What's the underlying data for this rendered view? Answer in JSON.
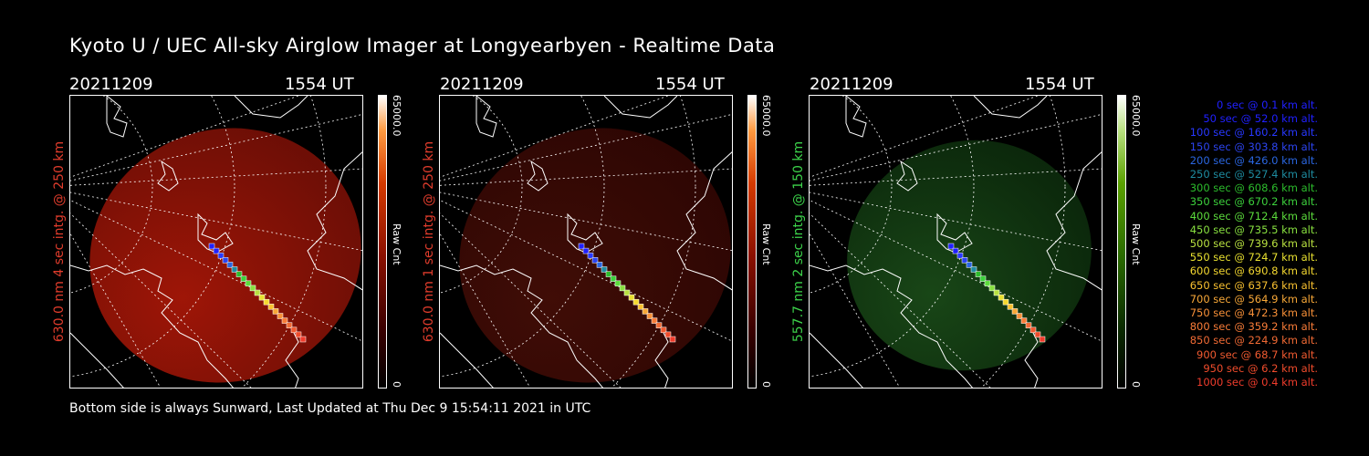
{
  "title": "Kyoto U / UEC All-sky Airglow Imager at Longyearbyen - Realtime Data",
  "panels": [
    {
      "date": "20211209",
      "ut": "1554 UT",
      "label": "630.0 nm  4 sec intg. @ 250 km",
      "label_color": "#e03c2c",
      "cbar_max": "65000.0",
      "cbar_min": "0",
      "cbar_unit": "Raw Cnt",
      "cmap": "red"
    },
    {
      "date": "20211209",
      "ut": "1554 UT",
      "label": "630.0 nm  1 sec intg. @ 250 km",
      "label_color": "#e03c2c",
      "cbar_max": "65000.0",
      "cbar_min": "0",
      "cbar_unit": "Raw Cnt",
      "cmap": "red"
    },
    {
      "date": "20211209",
      "ut": "1554 UT",
      "label": "557.7 nm  2 sec intg. @ 150 km",
      "label_color": "#3cd24a",
      "cbar_max": "65000.0",
      "cbar_min": "0",
      "cbar_unit": "Raw Cnt",
      "cmap": "green"
    }
  ],
  "legend": [
    {
      "text": "0 sec @   0.1 km alt.",
      "color": "#2020ff"
    },
    {
      "text": "50 sec @  52.0 km alt.",
      "color": "#2020ff"
    },
    {
      "text": "100 sec @ 160.2 km alt.",
      "color": "#2838ff"
    },
    {
      "text": "150 sec @ 303.8 km alt.",
      "color": "#2c44f0"
    },
    {
      "text": "200 sec @ 426.0 km alt.",
      "color": "#2a66e0"
    },
    {
      "text": "250 sec @ 527.4 km alt.",
      "color": "#1e8ca0"
    },
    {
      "text": "300 sec @ 608.6 km alt.",
      "color": "#2cbc2c"
    },
    {
      "text": "350 sec @ 670.2 km alt.",
      "color": "#3cd03c"
    },
    {
      "text": "400 sec @ 712.4 km alt.",
      "color": "#5cdc3c"
    },
    {
      "text": "450 sec @ 735.5 km alt.",
      "color": "#88e040"
    },
    {
      "text": "500 sec @ 739.6 km alt.",
      "color": "#b8e040"
    },
    {
      "text": "550 sec @ 724.7 km alt.",
      "color": "#e8e030"
    },
    {
      "text": "600 sec @ 690.8 km alt.",
      "color": "#f4d830"
    },
    {
      "text": "650 sec @ 637.6 km alt.",
      "color": "#f8c030"
    },
    {
      "text": "700 sec @ 564.9 km alt.",
      "color": "#f8a838"
    },
    {
      "text": "750 sec @ 472.3 km alt.",
      "color": "#f89038"
    },
    {
      "text": "800 sec @ 359.2 km alt.",
      "color": "#f87c38"
    },
    {
      "text": "850 sec @ 224.9 km alt.",
      "color": "#f06a34"
    },
    {
      "text": "900 sec @  68.7 km alt.",
      "color": "#f05a30"
    },
    {
      "text": "950 sec @   6.2 km alt.",
      "color": "#f04c2c"
    },
    {
      "text": "1000 sec @   0.4 km alt.",
      "color": "#f03c2c"
    }
  ],
  "footer": "Bottom side is always Sunward, Last Updated at Thu Dec  9 15:54:11 2021 in UTC"
}
